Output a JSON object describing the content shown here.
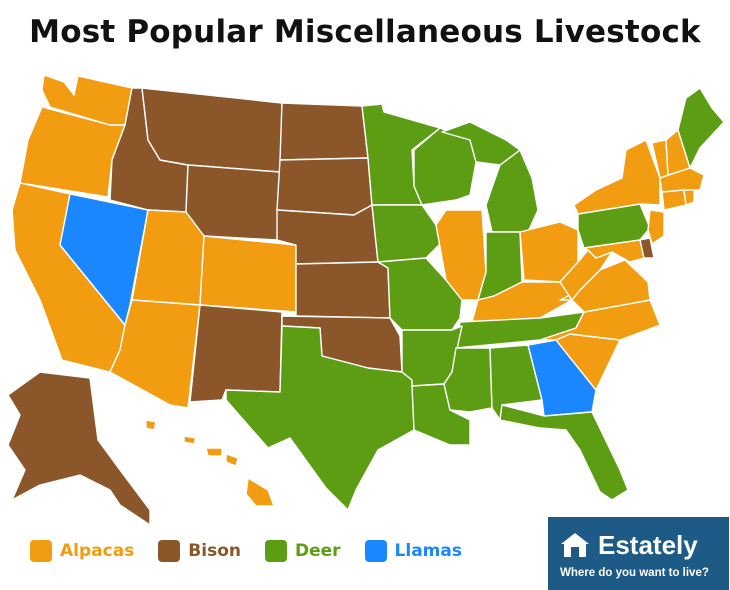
{
  "title": "Most Popular Miscellaneous Livestock",
  "colors": {
    "alpacas": "#f29c12",
    "bison": "#8b572a",
    "deer": "#5c9d14",
    "llamas": "#1a87ff",
    "badge_bg": "#1d5a86"
  },
  "legend": [
    {
      "key": "alpacas",
      "label": "Alpacas",
      "color": "#f29c12"
    },
    {
      "key": "bison",
      "label": "Bison",
      "color": "#8b572a"
    },
    {
      "key": "deer",
      "label": "Deer",
      "color": "#5c9d14"
    },
    {
      "key": "llamas",
      "label": "Llamas",
      "color": "#1a87ff"
    }
  ],
  "badge": {
    "brand": "Estately",
    "tagline": "Where do you want to live?",
    "icon": "house-icon"
  },
  "states": {
    "alpacas": [
      "WA",
      "OR",
      "CA",
      "UT",
      "AZ",
      "CO",
      "IL",
      "OH",
      "KY",
      "WV",
      "VA",
      "NC",
      "SC",
      "NY",
      "VT",
      "NH",
      "MA",
      "CT",
      "RI",
      "NJ",
      "MD",
      "HI"
    ],
    "bison": [
      "ID",
      "MT",
      "WY",
      "ND",
      "SD",
      "NE",
      "KS",
      "NM",
      "OK",
      "AK",
      "DE"
    ],
    "deer": [
      "MN",
      "IA",
      "WI",
      "MI",
      "IN",
      "MO",
      "AR",
      "LA",
      "MS",
      "AL",
      "TN",
      "TX",
      "FL",
      "PA",
      "ME"
    ],
    "llamas": [
      "NV",
      "GA"
    ]
  }
}
